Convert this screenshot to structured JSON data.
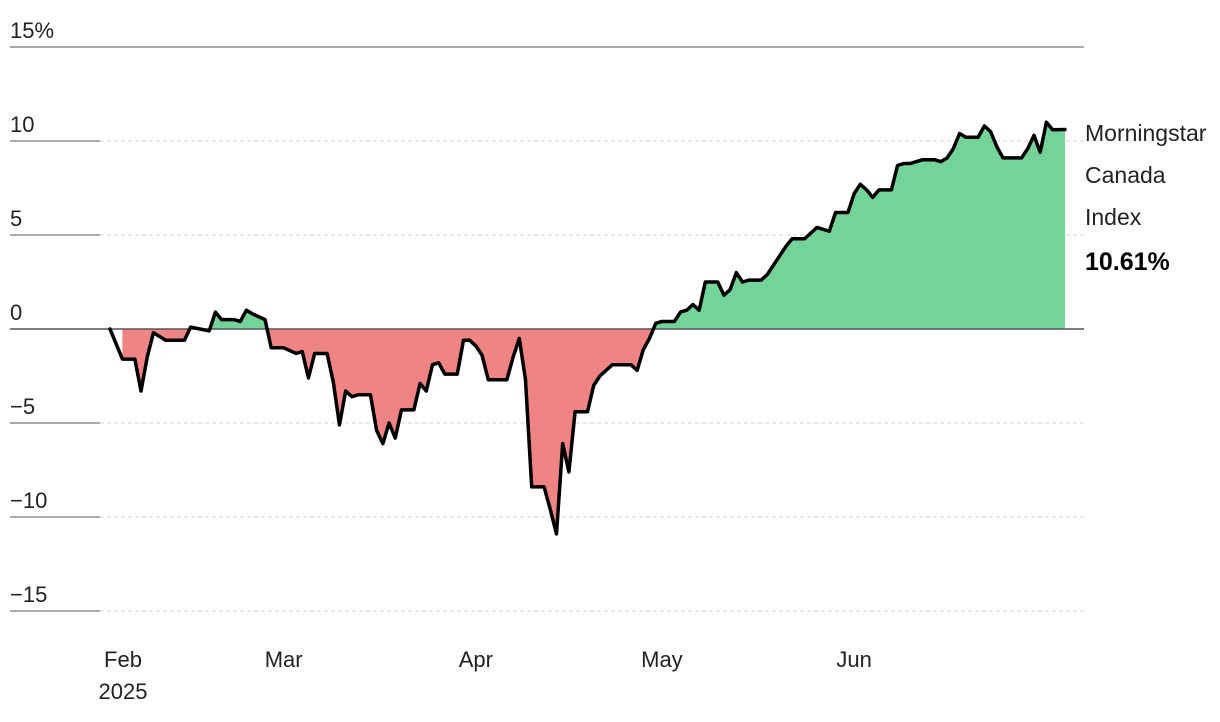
{
  "chart_data": {
    "type": "area",
    "title": "",
    "xlabel": "",
    "ylabel": "",
    "ylim": [
      -15,
      15
    ],
    "y_ticks": [
      15,
      10,
      5,
      0,
      -5,
      -10,
      -15
    ],
    "y_tick_labels": [
      "15%",
      "10",
      "5",
      "0",
      "−5",
      "−10",
      "−15"
    ],
    "x_ticks": [
      {
        "label": "Feb",
        "sublabel": "2025",
        "date": "2025-02-01"
      },
      {
        "label": "Mar",
        "sublabel": "",
        "date": "2025-03-01"
      },
      {
        "label": "Apr",
        "sublabel": "",
        "date": "2025-04-01"
      },
      {
        "label": "May",
        "sublabel": "",
        "date": "2025-05-01"
      },
      {
        "label": "Jun",
        "sublabel": "",
        "date": "2025-06-01"
      }
    ],
    "x_range": [
      "2025-02-01",
      "2025-06-30"
    ],
    "grid": "horizontal dashed",
    "colors": {
      "positive": "#74d399",
      "negative": "#f08484",
      "line": "#000000",
      "zero_line": "#555555",
      "grid": "#d6d6d6"
    },
    "series": [
      {
        "name": "Morningstar Canada Index",
        "label_lines": [
          "Morningstar",
          "Canada",
          "Index"
        ],
        "final_value_label": "10.61%",
        "points": [
          [
            "2025-02-01",
            0.0
          ],
          [
            "2025-02-03",
            -1.6
          ],
          [
            "2025-02-05",
            -1.6
          ],
          [
            "2025-02-06",
            -3.3
          ],
          [
            "2025-02-07",
            -1.5
          ],
          [
            "2025-02-08",
            -0.2
          ],
          [
            "2025-02-10",
            -0.6
          ],
          [
            "2025-02-13",
            -0.6
          ],
          [
            "2025-02-14",
            0.1
          ],
          [
            "2025-02-17",
            -0.1
          ],
          [
            "2025-02-18",
            0.9
          ],
          [
            "2025-02-19",
            0.5
          ],
          [
            "2025-02-21",
            0.5
          ],
          [
            "2025-02-22",
            0.4
          ],
          [
            "2025-02-23",
            1.0
          ],
          [
            "2025-02-24",
            0.8
          ],
          [
            "2025-02-26",
            0.5
          ],
          [
            "2025-02-27",
            -1.0
          ],
          [
            "2025-02-28",
            -1.0
          ],
          [
            "2025-03-01",
            -1.0
          ],
          [
            "2025-03-03",
            -1.3
          ],
          [
            "2025-03-04",
            -1.2
          ],
          [
            "2025-03-05",
            -2.6
          ],
          [
            "2025-03-06",
            -1.3
          ],
          [
            "2025-03-07",
            -1.3
          ],
          [
            "2025-03-08",
            -1.3
          ],
          [
            "2025-03-09",
            -2.8
          ],
          [
            "2025-03-10",
            -5.1
          ],
          [
            "2025-03-11",
            -3.3
          ],
          [
            "2025-03-12",
            -3.6
          ],
          [
            "2025-03-13",
            -3.5
          ],
          [
            "2025-03-15",
            -3.5
          ],
          [
            "2025-03-16",
            -5.4
          ],
          [
            "2025-03-17",
            -6.1
          ],
          [
            "2025-03-18",
            -5.0
          ],
          [
            "2025-03-19",
            -5.8
          ],
          [
            "2025-03-20",
            -4.3
          ],
          [
            "2025-03-22",
            -4.3
          ],
          [
            "2025-03-23",
            -2.9
          ],
          [
            "2025-03-24",
            -3.3
          ],
          [
            "2025-03-25",
            -1.9
          ],
          [
            "2025-03-26",
            -1.8
          ],
          [
            "2025-03-27",
            -2.4
          ],
          [
            "2025-03-29",
            -2.4
          ],
          [
            "2025-03-30",
            -0.6
          ],
          [
            "2025-03-31",
            -0.6
          ],
          [
            "2025-04-01",
            -0.9
          ],
          [
            "2025-04-02",
            -1.4
          ],
          [
            "2025-04-03",
            -2.7
          ],
          [
            "2025-04-06",
            -2.7
          ],
          [
            "2025-04-07",
            -1.5
          ],
          [
            "2025-04-08",
            -0.5
          ],
          [
            "2025-04-09",
            -2.7
          ],
          [
            "2025-04-10",
            -8.4
          ],
          [
            "2025-04-12",
            -8.4
          ],
          [
            "2025-04-13",
            -9.6
          ],
          [
            "2025-04-14",
            -10.9
          ],
          [
            "2025-04-15",
            -6.1
          ],
          [
            "2025-04-16",
            -7.6
          ],
          [
            "2025-04-17",
            -4.4
          ],
          [
            "2025-04-19",
            -4.4
          ],
          [
            "2025-04-20",
            -3.0
          ],
          [
            "2025-04-21",
            -2.5
          ],
          [
            "2025-04-22",
            -2.2
          ],
          [
            "2025-04-23",
            -1.9
          ],
          [
            "2025-04-26",
            -1.9
          ],
          [
            "2025-04-27",
            -2.2
          ],
          [
            "2025-04-28",
            -1.1
          ],
          [
            "2025-04-29",
            -0.5
          ],
          [
            "2025-04-30",
            0.3
          ],
          [
            "2025-05-01",
            0.4
          ],
          [
            "2025-05-03",
            0.4
          ],
          [
            "2025-05-04",
            0.9
          ],
          [
            "2025-05-05",
            1.0
          ],
          [
            "2025-05-06",
            1.3
          ],
          [
            "2025-05-07",
            1.0
          ],
          [
            "2025-05-08",
            2.5
          ],
          [
            "2025-05-10",
            2.5
          ],
          [
            "2025-05-11",
            1.8
          ],
          [
            "2025-05-12",
            2.1
          ],
          [
            "2025-05-13",
            3.0
          ],
          [
            "2025-05-14",
            2.5
          ],
          [
            "2025-05-15",
            2.6
          ],
          [
            "2025-05-17",
            2.6
          ],
          [
            "2025-05-18",
            2.9
          ],
          [
            "2025-05-19",
            3.4
          ],
          [
            "2025-05-20",
            3.9
          ],
          [
            "2025-05-21",
            4.4
          ],
          [
            "2025-05-22",
            4.8
          ],
          [
            "2025-05-24",
            4.8
          ],
          [
            "2025-05-25",
            5.1
          ],
          [
            "2025-05-26",
            5.4
          ],
          [
            "2025-05-27",
            5.3
          ],
          [
            "2025-05-28",
            5.2
          ],
          [
            "2025-05-29",
            6.2
          ],
          [
            "2025-05-31",
            6.2
          ],
          [
            "2025-06-01",
            7.2
          ],
          [
            "2025-06-02",
            7.7
          ],
          [
            "2025-06-03",
            7.4
          ],
          [
            "2025-06-04",
            7.0
          ],
          [
            "2025-06-05",
            7.4
          ],
          [
            "2025-06-07",
            7.4
          ],
          [
            "2025-06-08",
            8.7
          ],
          [
            "2025-06-09",
            8.8
          ],
          [
            "2025-06-10",
            8.8
          ],
          [
            "2025-06-11",
            8.9
          ],
          [
            "2025-06-12",
            9.0
          ],
          [
            "2025-06-14",
            9.0
          ],
          [
            "2025-06-15",
            8.9
          ],
          [
            "2025-06-16",
            9.1
          ],
          [
            "2025-06-17",
            9.6
          ],
          [
            "2025-06-18",
            10.4
          ],
          [
            "2025-06-19",
            10.2
          ],
          [
            "2025-06-21",
            10.2
          ],
          [
            "2025-06-22",
            10.8
          ],
          [
            "2025-06-23",
            10.5
          ],
          [
            "2025-06-24",
            9.7
          ],
          [
            "2025-06-25",
            9.1
          ],
          [
            "2025-06-28",
            9.1
          ],
          [
            "2025-06-29",
            9.6
          ],
          [
            "2025-06-30",
            10.3
          ],
          [
            "2025-07-01",
            9.4
          ],
          [
            "2025-07-02",
            11.0
          ],
          [
            "2025-07-03",
            10.6
          ],
          [
            "2025-07-05",
            10.61
          ]
        ]
      }
    ]
  }
}
